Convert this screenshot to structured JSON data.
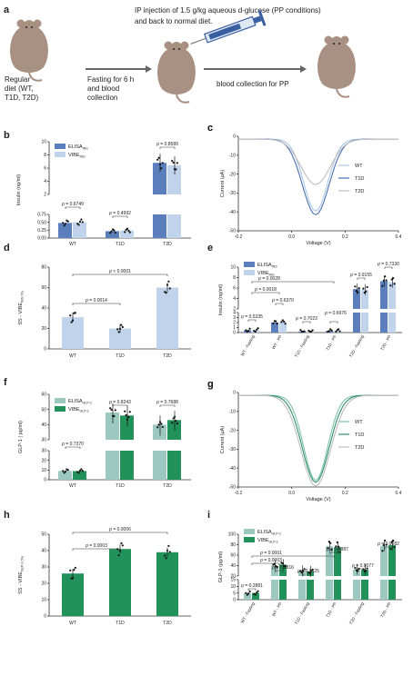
{
  "colors": {
    "ins_dark": "#5b7fbd",
    "ins_light": "#c0d3ea",
    "glp_light": "#9cc8c0",
    "glp_dark": "#22925b",
    "wt_cv_ins": "#a9c7e6",
    "t1d_cv_ins": "#4a6fb0",
    "t2d_cv": "#bdbdbd",
    "wt_cv_glp": "#7dc2a3",
    "t1d_cv_glp": "#2f8d6a",
    "mouse": "#a89082",
    "syringe": "#3a5fa0"
  },
  "schema": {
    "panel": "a",
    "injection_text_1": "IP injection of 1.5 g/kg aqueous d-glucose (PP conditions)",
    "injection_text_2": "and back to normal diet.",
    "diet_lines": [
      "Regular",
      "diet (WT,",
      "T1D, T2D)"
    ],
    "fasting_lines": [
      "Fasting for 6 h",
      "and blood",
      "collection"
    ],
    "pp_text": "blood collection for PP"
  },
  "chart_data": [
    {
      "panel": "b",
      "type": "bar",
      "categories": [
        "WT",
        "T1D",
        "T2D"
      ],
      "series": [
        {
          "name": "ELISA_INS",
          "values": [
            0.48,
            0.22,
            6.8
          ]
        },
        {
          "name": "VIBE_INS",
          "values": [
            0.5,
            0.24,
            6.4
          ]
        }
      ],
      "ylabel": "Insulin (ng/ml)",
      "yticks_lower": [
        "0.00",
        "0.25",
        "0.50",
        "0.75"
      ],
      "yticks_upper": [
        "2",
        "4",
        "6",
        "8",
        "10"
      ],
      "pvalues": [
        "p = 0.6749",
        "p = 0.4992",
        "p = 0.8589"
      ],
      "legend": "top-left"
    },
    {
      "panel": "c",
      "type": "line",
      "xlabel": "Voltage (V)",
      "ylabel": "Current (μA)",
      "xticks": [
        "-0.2",
        "0.0",
        "0.2",
        "0.4"
      ],
      "yticks": [
        "0",
        "-10",
        "-20",
        "-30",
        "-40",
        "-50"
      ],
      "series": [
        {
          "name": "WT",
          "min": -38
        },
        {
          "name": "T1D",
          "min": -40
        },
        {
          "name": "T2D",
          "min": -24
        }
      ],
      "legend": "right"
    },
    {
      "panel": "d",
      "type": "bar",
      "categories": [
        "WT",
        "T1D",
        "T2D"
      ],
      "values": [
        31,
        20,
        60
      ],
      "ylabel": "SS - VIBE_INS (%)",
      "yticks": [
        "0",
        "20",
        "40",
        "60",
        "80"
      ],
      "ylim": [
        0,
        80
      ],
      "pvalues": [
        "p = 0.0014",
        "p < 0.0001"
      ]
    },
    {
      "panel": "e",
      "type": "bar",
      "categories": [
        "WT - Fasting",
        "WT - PP",
        "T1D - Fasting",
        "T1D - PP",
        "T2D - Fasting",
        "T2D - PP"
      ],
      "series": [
        {
          "name": "ELISA_INS",
          "values": [
            0.45,
            2.0,
            0.2,
            0.3,
            5.8,
            7.3
          ]
        },
        {
          "name": "VIBE_INS",
          "values": [
            0.5,
            2.1,
            0.22,
            0.32,
            5.7,
            7.1
          ]
        }
      ],
      "ylabel": "Insulin (ng/ml)",
      "yticks_lower": [
        "0",
        "1",
        "2",
        "3",
        "4"
      ],
      "yticks_upper": [
        "2",
        "4",
        "6",
        "8",
        "10"
      ],
      "pvalues": [
        "p = 0.5335",
        "p = 0.0018",
        "p = 0.6370",
        "p = 0.0028",
        "p = 0.7023",
        "p = 0.6976",
        "p = 0.9155",
        "p = 0.7330"
      ]
    },
    {
      "panel": "f",
      "type": "bar",
      "categories": [
        "WT",
        "T1D",
        "T2D"
      ],
      "series": [
        {
          "name": "ELISA_GLP-1",
          "values": [
            9,
            48,
            40
          ]
        },
        {
          "name": "VIBE_GLP-1",
          "values": [
            9,
            46,
            43
          ]
        }
      ],
      "ylabel": "GLP-1 ( pg/ml)",
      "yticks_lower": [
        "0",
        "10",
        "20",
        "30"
      ],
      "yticks_upper": [
        "30",
        "40",
        "50",
        "60"
      ],
      "pvalues": [
        "p = 0.7370",
        "p = 0.8243",
        "p = 0.7688"
      ]
    },
    {
      "panel": "g",
      "type": "line",
      "xlabel": "Voltage (V)",
      "ylabel": "Current (μA)",
      "xticks": [
        "-0.2",
        "0.0",
        "0.2",
        "0.4"
      ],
      "yticks": [
        "0",
        "-10",
        "-20",
        "-30",
        "-40",
        "-50"
      ],
      "series": [
        {
          "name": "WT",
          "min": -45
        },
        {
          "name": "T1D",
          "min": -46
        },
        {
          "name": "T2D",
          "min": -48
        }
      ],
      "legend": "right"
    },
    {
      "panel": "h",
      "type": "bar",
      "categories": [
        "WT",
        "T1D",
        "T2D"
      ],
      "values": [
        26,
        41,
        39
      ],
      "ylabel": "SS - VIBE_GLP-1 (%)",
      "yticks": [
        "0",
        "10",
        "20",
        "30",
        "40",
        "50"
      ],
      "ylim": [
        0,
        50
      ],
      "pvalues": [
        "p = 0.0003",
        "p = 0.0006"
      ]
    },
    {
      "panel": "i",
      "type": "bar",
      "categories": [
        "WT - Fasting",
        "WT - PP",
        "T1D - Fasting",
        "T1D - PP",
        "T2D - Fasting",
        "T2D - PP"
      ],
      "series": [
        {
          "name": "ELISA_GLP-1",
          "values": [
            5,
            40,
            30,
            77,
            33,
            78
          ]
        },
        {
          "name": "VIBE_GLP-1",
          "values": [
            5,
            42,
            29,
            75,
            32,
            79
          ]
        }
      ],
      "ylabel": "GLP-1 (pg/ml)",
      "yticks_lower": [
        "0",
        "5",
        "10",
        "15"
      ],
      "yticks_upper": [
        "20",
        "40",
        "60",
        "80",
        "100"
      ],
      "pvalues": [
        "p = 0.2881",
        "p = 0.0001",
        "p = 0.8816",
        "p = 0.0003",
        "p = 0.9625",
        "p = 0.4887",
        "p = 0.9077",
        "p = 0.9082"
      ]
    }
  ]
}
